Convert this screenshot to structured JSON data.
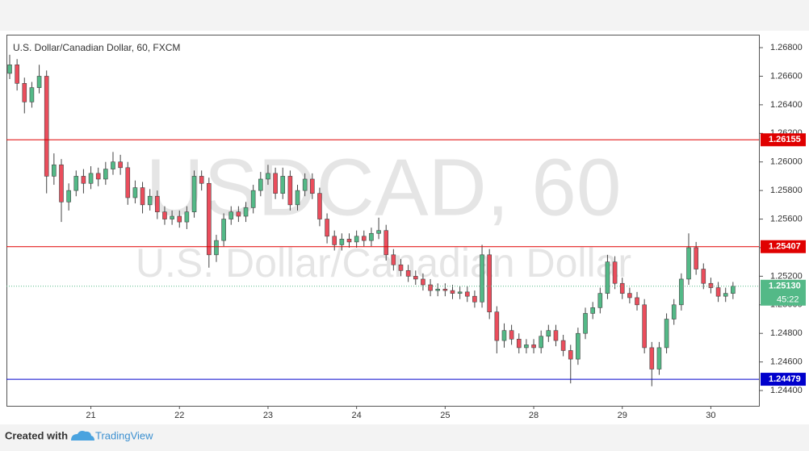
{
  "chart_data": {
    "type": "candlestick",
    "title": "U.S. Dollar/Canadian Dollar, 60, FXCM",
    "watermark": "USDCAD, 60",
    "watermark_sub": "U.S. Dollar/Canadian Dollar",
    "categories": [
      null,
      null,
      null,
      null,
      null,
      null,
      null,
      null,
      null,
      null,
      null,
      "21",
      null,
      null,
      null,
      null,
      null,
      null,
      null,
      null,
      null,
      null,
      null,
      "22",
      null,
      null,
      null,
      null,
      null,
      null,
      null,
      null,
      null,
      null,
      null,
      "23",
      null,
      null,
      null,
      null,
      null,
      null,
      null,
      null,
      null,
      null,
      null,
      "24",
      null,
      null,
      null,
      null,
      null,
      null,
      null,
      null,
      null,
      null,
      null,
      "25",
      null,
      null,
      null,
      null,
      null,
      null,
      null,
      null,
      null,
      null,
      null,
      "28",
      null,
      null,
      null,
      null,
      null,
      null,
      null,
      null,
      null,
      null,
      null,
      "29",
      null,
      null,
      null,
      null,
      null,
      null,
      null,
      null,
      null,
      null,
      null,
      "30",
      null,
      null,
      null
    ],
    "up_color": "#53b987",
    "down_color": "#eb4d5c",
    "wick_color": "#444",
    "open": [
      1.2662,
      1.2668,
      1.2655,
      1.2642,
      1.2652,
      1.266,
      1.259,
      1.2598,
      1.2572,
      1.258,
      1.259,
      1.2585,
      1.2592,
      1.2588,
      1.2595,
      1.26,
      1.2596,
      1.2575,
      1.2582,
      1.257,
      1.2576,
      1.2565,
      1.256,
      1.2562,
      1.2558,
      1.2565,
      1.259,
      1.2585,
      1.2535,
      1.2545,
      1.256,
      1.2565,
      1.2562,
      1.2568,
      1.258,
      1.2588,
      1.2592,
      1.2578,
      1.259,
      1.257,
      1.258,
      1.2588,
      1.2578,
      1.256,
      1.2548,
      1.2542,
      1.2546,
      1.2544,
      1.2548,
      1.2545,
      1.255,
      1.2552,
      1.2535,
      1.2528,
      1.2524,
      1.252,
      1.2518,
      1.2514,
      1.251,
      1.2511,
      1.251,
      1.2508,
      1.2509,
      1.2506,
      1.2502,
      1.2535,
      1.2495,
      1.2475,
      1.2482,
      1.2476,
      1.247,
      1.2472,
      1.247,
      1.2478,
      1.2482,
      1.2475,
      1.2468,
      1.2462,
      1.248,
      1.2494,
      1.2498,
      1.2508,
      1.253,
      1.2515,
      1.2508,
      1.2505,
      1.25,
      1.247,
      1.2455,
      1.247,
      1.249,
      1.25,
      1.2518,
      1.254,
      1.2525,
      1.2515,
      1.2512,
      1.2506,
      1.2508
    ],
    "high": [
      1.2675,
      1.2672,
      1.2659,
      1.2656,
      1.2668,
      1.2664,
      1.2606,
      1.2602,
      1.2585,
      1.2594,
      1.2595,
      1.2597,
      1.2596,
      1.26,
      1.2607,
      1.2605,
      1.26,
      1.2587,
      1.2586,
      1.2581,
      1.258,
      1.2569,
      1.2566,
      1.2566,
      1.2569,
      1.2594,
      1.2594,
      1.2589,
      1.2549,
      1.2564,
      1.2569,
      1.2569,
      1.2572,
      1.2584,
      1.2593,
      1.2598,
      1.2596,
      1.2596,
      1.2594,
      1.2584,
      1.2592,
      1.2592,
      1.2582,
      1.2564,
      1.2552,
      1.255,
      1.255,
      1.2552,
      1.2552,
      1.2554,
      1.2561,
      1.2556,
      1.2539,
      1.2532,
      1.2528,
      1.2524,
      1.2522,
      1.2518,
      1.2515,
      1.2515,
      1.2514,
      1.2513,
      1.2513,
      1.251,
      1.2542,
      1.2539,
      1.2499,
      1.2487,
      1.2486,
      1.248,
      1.2476,
      1.2476,
      1.2482,
      1.2486,
      1.2486,
      1.2479,
      1.2472,
      1.2484,
      1.2498,
      1.2502,
      1.2512,
      1.2535,
      1.2534,
      1.2519,
      1.2512,
      1.2509,
      1.2504,
      1.2474,
      1.2474,
      1.2494,
      1.2504,
      1.2522,
      1.255,
      1.2544,
      1.2529,
      1.2519,
      1.2516,
      1.2512,
      1.2516
    ],
    "low": [
      1.2658,
      1.265,
      1.2634,
      1.2638,
      1.2648,
      1.2578,
      1.2584,
      1.2558,
      1.2566,
      1.2576,
      1.2578,
      1.2581,
      1.2583,
      1.2584,
      1.2591,
      1.2591,
      1.257,
      1.2571,
      1.2564,
      1.2566,
      1.256,
      1.2556,
      1.2556,
      1.2554,
      1.2553,
      1.2561,
      1.258,
      1.2526,
      1.253,
      1.2541,
      1.2556,
      1.2558,
      1.2558,
      1.2564,
      1.2576,
      1.2584,
      1.2574,
      1.2574,
      1.2566,
      1.2566,
      1.2576,
      1.2574,
      1.2555,
      1.2543,
      1.2538,
      1.2538,
      1.254,
      1.254,
      1.2541,
      1.2541,
      1.2546,
      1.2531,
      1.2524,
      1.252,
      1.2516,
      1.2514,
      1.251,
      1.2506,
      1.2506,
      1.2506,
      1.2504,
      1.2504,
      1.2502,
      1.2498,
      1.2498,
      1.249,
      1.2466,
      1.247,
      1.2472,
      1.2466,
      1.2466,
      1.2466,
      1.2466,
      1.2474,
      1.2471,
      1.2464,
      1.2445,
      1.2458,
      1.2476,
      1.249,
      1.2494,
      1.2504,
      1.2511,
      1.2504,
      1.2501,
      1.2496,
      1.2466,
      1.2443,
      1.2451,
      1.2466,
      1.2486,
      1.2496,
      1.2514,
      1.2521,
      1.2511,
      1.2508,
      1.2502,
      1.2502,
      1.2504
    ],
    "close": [
      1.2668,
      1.2655,
      1.2642,
      1.2652,
      1.266,
      1.259,
      1.2598,
      1.2572,
      1.258,
      1.259,
      1.2585,
      1.2592,
      1.2588,
      1.2595,
      1.26,
      1.2596,
      1.2575,
      1.2582,
      1.257,
      1.2576,
      1.2565,
      1.256,
      1.2562,
      1.2558,
      1.2565,
      1.259,
      1.2585,
      1.2535,
      1.2545,
      1.256,
      1.2565,
      1.2562,
      1.2568,
      1.258,
      1.2588,
      1.2592,
      1.2578,
      1.259,
      1.257,
      1.258,
      1.2588,
      1.2578,
      1.256,
      1.2548,
      1.2542,
      1.2546,
      1.2544,
      1.2548,
      1.2545,
      1.255,
      1.2552,
      1.2535,
      1.2528,
      1.2524,
      1.252,
      1.2518,
      1.2514,
      1.251,
      1.2511,
      1.251,
      1.2508,
      1.2509,
      1.2506,
      1.2502,
      1.2535,
      1.2495,
      1.2475,
      1.2482,
      1.2476,
      1.247,
      1.2472,
      1.247,
      1.2478,
      1.2482,
      1.2475,
      1.2468,
      1.2462,
      1.248,
      1.2494,
      1.2498,
      1.2508,
      1.253,
      1.2515,
      1.2508,
      1.2505,
      1.25,
      1.247,
      1.2455,
      1.247,
      1.249,
      1.25,
      1.2518,
      1.254,
      1.2525,
      1.2515,
      1.2512,
      1.2506,
      1.2508,
      1.2513
    ],
    "ylim": [
      1.24293,
      1.26885
    ],
    "yticks": [
      {
        "value": 1.268,
        "label": "1.26800"
      },
      {
        "value": 1.266,
        "label": "1.26600"
      },
      {
        "value": 1.264,
        "label": "1.26400"
      },
      {
        "value": 1.262,
        "label": "1.26200"
      },
      {
        "value": 1.26,
        "label": "1.26000"
      },
      {
        "value": 1.258,
        "label": "1.25800"
      },
      {
        "value": 1.256,
        "label": "1.25600"
      },
      {
        "value": 1.254,
        "label": "1.25400"
      },
      {
        "value": 1.252,
        "label": "1.25200"
      },
      {
        "value": 1.25,
        "label": "1.25000"
      },
      {
        "value": 1.248,
        "label": "1.24800"
      },
      {
        "value": 1.246,
        "label": "1.24600"
      },
      {
        "value": 1.244,
        "label": "1.24400"
      }
    ],
    "hlines": [
      {
        "value": 1.26155,
        "label": "1.26155",
        "color": "#e00000"
      },
      {
        "value": 1.25407,
        "label": "1.25407",
        "color": "#e00000"
      },
      {
        "value": 1.24479,
        "label": "1.24479",
        "color": "#0000cc"
      }
    ],
    "last_price": {
      "value": 1.2513,
      "label": "1.25130",
      "countdown": "45:22",
      "color": "#53b987"
    },
    "footer": {
      "created": "Created with",
      "brand": "TradingView"
    }
  }
}
